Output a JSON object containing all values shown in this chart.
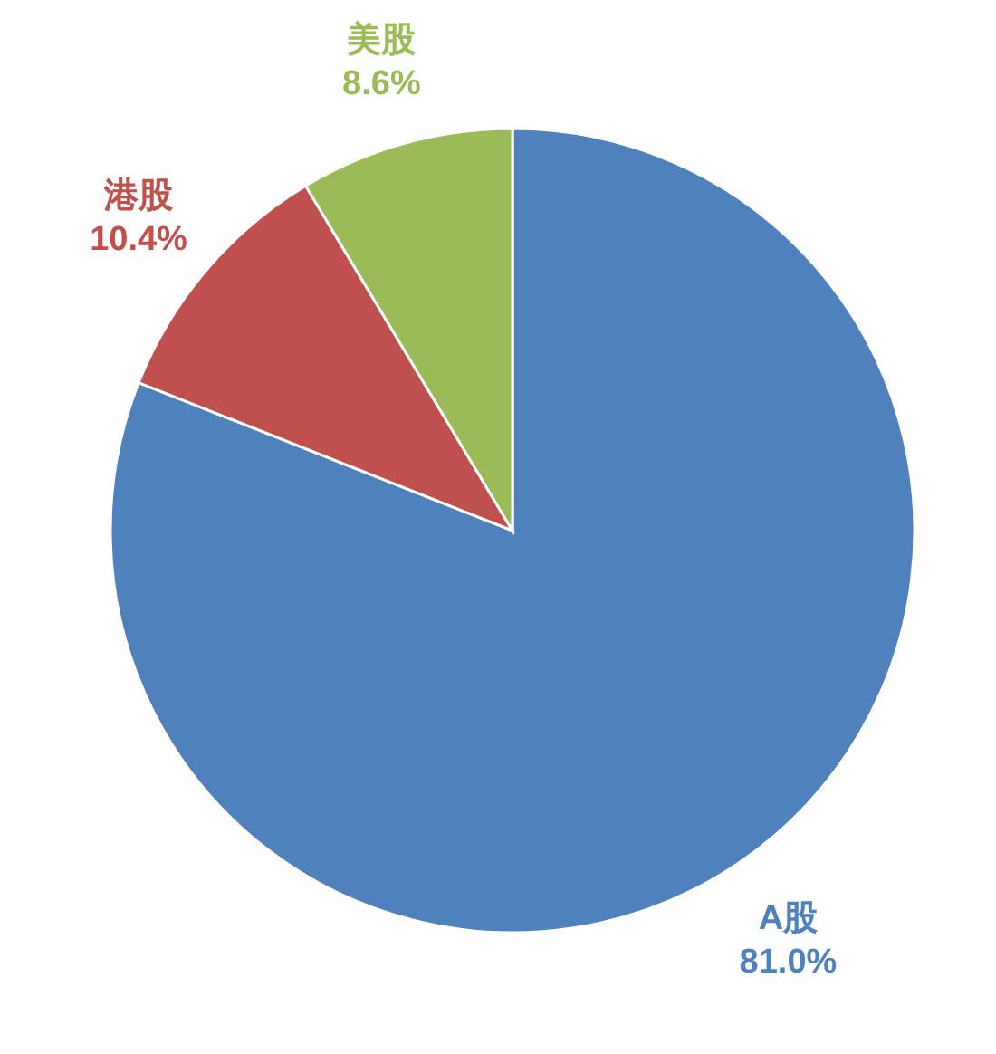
{
  "chart_data": {
    "type": "pie",
    "categories": [
      "A股",
      "港股",
      "美股"
    ],
    "values": [
      81.0,
      10.4,
      8.6
    ],
    "colors": [
      "#4f81bd",
      "#c0504d",
      "#9bbb59"
    ],
    "value_labels": [
      "81.0%",
      "10.4%",
      "8.6%"
    ]
  }
}
